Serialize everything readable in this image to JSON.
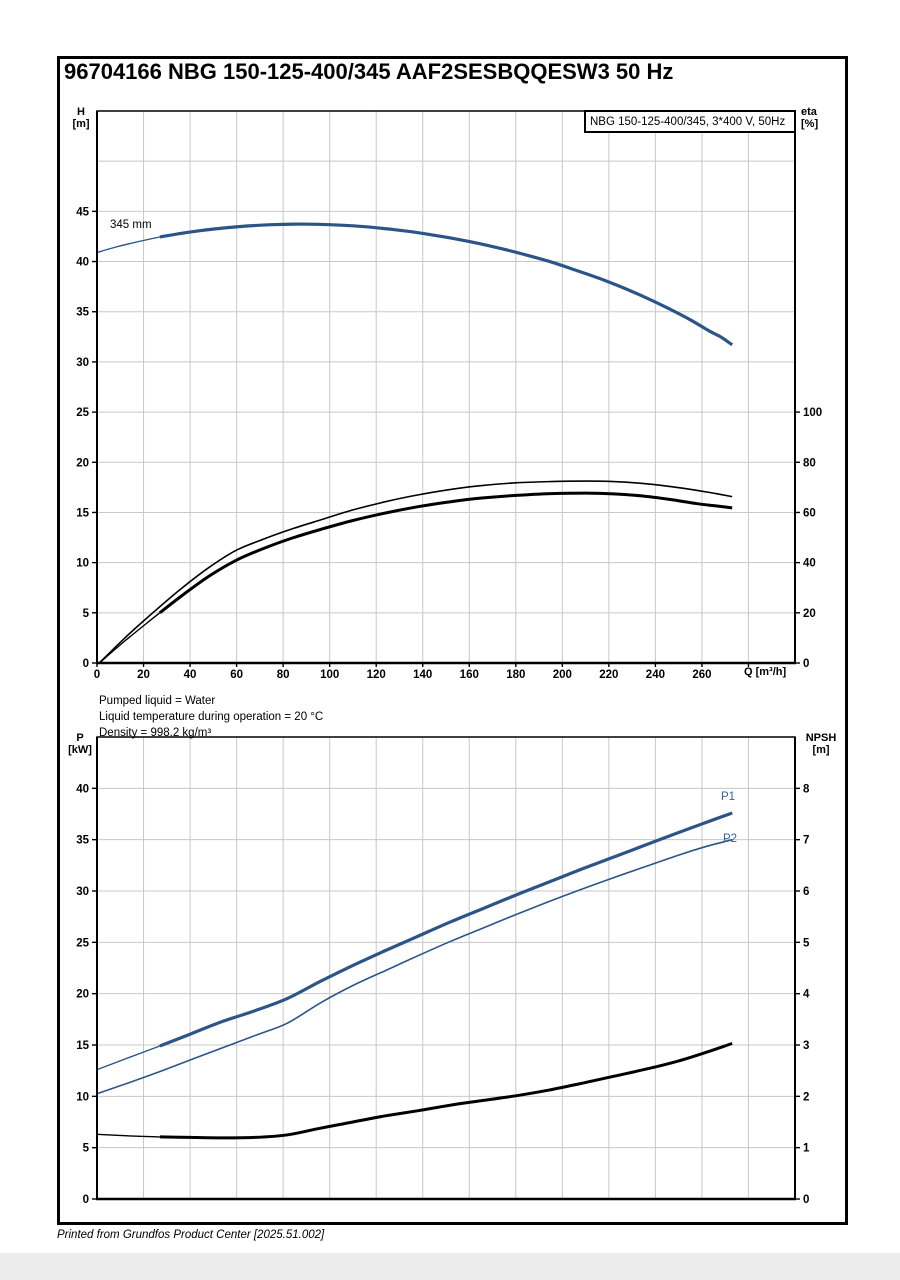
{
  "page": {
    "title": "96704166 NBG 150-125-400/345 AAF2SESBQQESW3 50 Hz",
    "liquid_info": [
      "Pumped liquid = Water",
      "Liquid temperature during operation = 20 °C",
      "Density = 998.2 kg/m³"
    ],
    "footer": "Printed from Grundfos Product Center [2025.51.002]"
  },
  "colors": {
    "curve_blue": "#2b5488",
    "label_blue": "#34619b",
    "grid": "#c8c8c8",
    "axis": "#000000"
  },
  "chart_data": [
    {
      "type": "line",
      "legend": "NBG 150-125-400/345, 3*400 V, 50Hz",
      "x_axis": {
        "label": "Q [m³/h]",
        "min": 0,
        "max": 300,
        "grid_step": 20,
        "tick_step": 20,
        "last_tick": 280,
        "last_labeled": 260,
        "show_labels": true
      },
      "y_left": {
        "label": [
          "H",
          "[m]"
        ],
        "min": 0,
        "max": 55,
        "grid_step": 5,
        "last_labeled": 45
      },
      "y_right": {
        "label": [
          "eta",
          "[%]"
        ],
        "min": 0,
        "max": 220,
        "tick_step": 20,
        "last_labeled": 100
      },
      "series": [
        {
          "name": "head-345mm",
          "label": "345 mm",
          "axis": "left",
          "color": "blue",
          "width": 3.2,
          "thin_width": 1.4,
          "thin_until": 27,
          "points": [
            [
              0,
              40.9
            ],
            [
              9,
              41.5
            ],
            [
              18,
              42.0
            ],
            [
              27,
              42.45
            ],
            [
              36,
              42.8
            ],
            [
              45,
              43.1
            ],
            [
              55,
              43.35
            ],
            [
              65,
              43.55
            ],
            [
              75,
              43.67
            ],
            [
              85,
              43.73
            ],
            [
              95,
              43.71
            ],
            [
              105,
              43.62
            ],
            [
              115,
              43.47
            ],
            [
              125,
              43.25
            ],
            [
              135,
              42.97
            ],
            [
              145,
              42.62
            ],
            [
              155,
              42.22
            ],
            [
              165,
              41.76
            ],
            [
              175,
              41.22
            ],
            [
              185,
              40.62
            ],
            [
              195,
              39.97
            ],
            [
              205,
              39.2
            ],
            [
              215,
              38.4
            ],
            [
              225,
              37.5
            ],
            [
              235,
              36.5
            ],
            [
              245,
              35.4
            ],
            [
              255,
              34.2
            ],
            [
              263,
              33.1
            ],
            [
              268,
              32.5
            ],
            [
              273,
              31.7
            ]
          ]
        },
        {
          "name": "eta-pump",
          "axis": "right",
          "color": "black",
          "width": 1.6,
          "points": [
            [
              1,
              0
            ],
            [
              12,
              10
            ],
            [
              24,
              20
            ],
            [
              36,
              29.5
            ],
            [
              48,
              38
            ],
            [
              60,
              45
            ],
            [
              72,
              49.5
            ],
            [
              84,
              53.5
            ],
            [
              96,
              57
            ],
            [
              110,
              61
            ],
            [
              124,
              64.3
            ],
            [
              138,
              67
            ],
            [
              152,
              69.2
            ],
            [
              166,
              70.8
            ],
            [
              180,
              71.8
            ],
            [
              195,
              72.3
            ],
            [
              210,
              72.5
            ],
            [
              222,
              72.3
            ],
            [
              234,
              71.6
            ],
            [
              246,
              70.4
            ],
            [
              258,
              68.8
            ],
            [
              266,
              67.5
            ],
            [
              273,
              66.3
            ]
          ]
        },
        {
          "name": "eta-pump-motor",
          "axis": "right",
          "color": "black",
          "width": 3,
          "thin_width": 1.4,
          "thin_until": 27,
          "points": [
            [
              1,
              0
            ],
            [
              12,
              8.8
            ],
            [
              24,
              17.8
            ],
            [
              27,
              20
            ],
            [
              36,
              26.5
            ],
            [
              48,
              34.5
            ],
            [
              60,
              41
            ],
            [
              72,
              45.8
            ],
            [
              84,
              49.8
            ],
            [
              96,
              53.2
            ],
            [
              110,
              56.8
            ],
            [
              124,
              59.8
            ],
            [
              138,
              62.3
            ],
            [
              152,
              64.3
            ],
            [
              166,
              65.8
            ],
            [
              180,
              66.8
            ],
            [
              195,
              67.5
            ],
            [
              210,
              67.7
            ],
            [
              222,
              67.4
            ],
            [
              234,
              66.6
            ],
            [
              246,
              65.2
            ],
            [
              258,
              63.5
            ],
            [
              266,
              62.6
            ],
            [
              273,
              61.8
            ]
          ]
        }
      ]
    },
    {
      "type": "line",
      "x_axis": {
        "min": 0,
        "max": 300,
        "grid_step": 20,
        "show_labels": false
      },
      "y_left": {
        "label": [
          "P",
          "[kW]"
        ],
        "min": 0,
        "max": 45,
        "grid_step": 5,
        "last_labeled": 40
      },
      "y_right": {
        "label": [
          "NPSH",
          "[m]"
        ],
        "min": 0,
        "max": 9,
        "tick_step": 1,
        "last_labeled": 8
      },
      "series": [
        {
          "name": "P1",
          "label": "P1",
          "axis": "left",
          "color": "blue",
          "width": 3.2,
          "thin_width": 1.4,
          "thin_until": 27,
          "points": [
            [
              0,
              12.6
            ],
            [
              14,
              13.8
            ],
            [
              27,
              14.9
            ],
            [
              40,
              16.05
            ],
            [
              54,
              17.3
            ],
            [
              68,
              18.35
            ],
            [
              82,
              19.55
            ],
            [
              96,
              21.2
            ],
            [
              110,
              22.75
            ],
            [
              124,
              24.2
            ],
            [
              138,
              25.6
            ],
            [
              152,
              27.0
            ],
            [
              166,
              28.3
            ],
            [
              180,
              29.6
            ],
            [
              194,
              30.85
            ],
            [
              208,
              32.1
            ],
            [
              222,
              33.3
            ],
            [
              236,
              34.5
            ],
            [
              250,
              35.7
            ],
            [
              262,
              36.7
            ],
            [
              273,
              37.6
            ]
          ]
        },
        {
          "name": "P2",
          "label": "P2",
          "axis": "left",
          "color": "blue",
          "width": 1.6,
          "points": [
            [
              0,
              10.25
            ],
            [
              14,
              11.35
            ],
            [
              28,
              12.5
            ],
            [
              42,
              13.7
            ],
            [
              56,
              14.9
            ],
            [
              70,
              16.1
            ],
            [
              82,
              17.15
            ],
            [
              96,
              19.1
            ],
            [
              110,
              20.8
            ],
            [
              124,
              22.25
            ],
            [
              138,
              23.7
            ],
            [
              152,
              25.1
            ],
            [
              166,
              26.4
            ],
            [
              180,
              27.7
            ],
            [
              194,
              28.95
            ],
            [
              208,
              30.15
            ],
            [
              222,
              31.3
            ],
            [
              236,
              32.4
            ],
            [
              250,
              33.5
            ],
            [
              262,
              34.35
            ],
            [
              273,
              35.0
            ]
          ]
        },
        {
          "name": "NPSH",
          "axis": "right",
          "color": "black",
          "width": 3,
          "thin_width": 1.4,
          "thin_until": 27,
          "points": [
            [
              0,
              1.26
            ],
            [
              14,
              1.23
            ],
            [
              27,
              1.21
            ],
            [
              40,
              1.2
            ],
            [
              54,
              1.19
            ],
            [
              68,
              1.2
            ],
            [
              82,
              1.25
            ],
            [
              96,
              1.38
            ],
            [
              110,
              1.5
            ],
            [
              124,
              1.62
            ],
            [
              138,
              1.72
            ],
            [
              152,
              1.83
            ],
            [
              166,
              1.92
            ],
            [
              180,
              2.01
            ],
            [
              194,
              2.12
            ],
            [
              208,
              2.25
            ],
            [
              222,
              2.39
            ],
            [
              236,
              2.53
            ],
            [
              250,
              2.69
            ],
            [
              262,
              2.86
            ],
            [
              273,
              3.03
            ]
          ]
        }
      ]
    }
  ]
}
